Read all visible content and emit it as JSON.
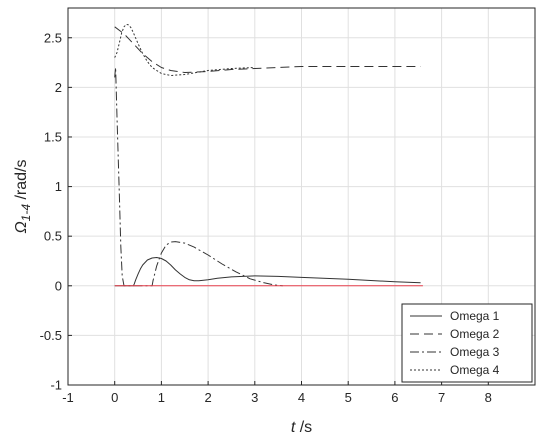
{
  "chart_data": {
    "type": "line",
    "xlabel": {
      "var": "t",
      "unit": " /s"
    },
    "ylabel": {
      "var": "Ω",
      "sub": "1-4",
      "unit": " /rad/s"
    },
    "xlim": [
      -1,
      9
    ],
    "ylim": [
      -1,
      2.8
    ],
    "xticks": [
      -1,
      0,
      1,
      2,
      3,
      4,
      5,
      6,
      7,
      8
    ],
    "yticks": [
      -1,
      -0.5,
      0,
      0.5,
      1,
      1.5,
      2,
      2.5
    ],
    "grid": true,
    "legend_position": "bottom-right",
    "series": [
      {
        "name": "Omega 1",
        "color": "#333333",
        "dash": "",
        "x": [
          0,
          0.4,
          0.42,
          0.45,
          0.5,
          0.55,
          0.6,
          0.7,
          0.8,
          0.9,
          1.0,
          1.1,
          1.2,
          1.3,
          1.4,
          1.5,
          1.6,
          1.7,
          1.8,
          2.0,
          2.2,
          2.5,
          3.0,
          3.5,
          4.0,
          5.0,
          6.0,
          6.55
        ],
        "y": [
          0,
          0,
          0.02,
          0.06,
          0.12,
          0.17,
          0.21,
          0.26,
          0.28,
          0.285,
          0.275,
          0.25,
          0.21,
          0.16,
          0.12,
          0.085,
          0.06,
          0.05,
          0.05,
          0.06,
          0.075,
          0.09,
          0.1,
          0.095,
          0.085,
          0.065,
          0.04,
          0.03
        ]
      },
      {
        "name": "Omega 2",
        "color": "#333333",
        "dash": "9,5",
        "x": [
          0,
          0.2,
          0.4,
          0.6,
          0.8,
          1.0,
          1.2,
          1.5,
          2.0,
          2.5,
          3.0,
          4.0,
          5.0,
          6.0,
          6.55
        ],
        "y": [
          2.61,
          2.54,
          2.44,
          2.34,
          2.26,
          2.2,
          2.17,
          2.15,
          2.16,
          2.18,
          2.19,
          2.21,
          2.21,
          2.21,
          2.21
        ]
      },
      {
        "name": "Omega 3",
        "color": "#333333",
        "dash": "9,3,2,3",
        "x": [
          0,
          0.02,
          0.05,
          0.1,
          0.13,
          0.16,
          0.2,
          0.8,
          0.82,
          0.9,
          1.0,
          1.1,
          1.2,
          1.3,
          1.5,
          1.7,
          2.0,
          2.3,
          2.6,
          2.9,
          3.2,
          3.4,
          3.6
        ],
        "y": [
          2.1,
          2.2,
          1.7,
          0.9,
          0.4,
          0.1,
          0,
          0,
          0.05,
          0.2,
          0.33,
          0.41,
          0.44,
          0.445,
          0.43,
          0.39,
          0.31,
          0.22,
          0.14,
          0.07,
          0.03,
          0.01,
          0
        ]
      },
      {
        "name": "Omega 4",
        "color": "#333333",
        "dash": "2,2",
        "x": [
          0,
          0.05,
          0.1,
          0.15,
          0.2,
          0.25,
          0.3,
          0.35,
          0.4,
          0.5,
          0.6,
          0.7,
          0.8,
          1.0,
          1.2,
          1.5,
          2.0,
          2.5,
          3.0
        ],
        "y": [
          2.3,
          2.35,
          2.45,
          2.55,
          2.61,
          2.635,
          2.63,
          2.6,
          2.55,
          2.44,
          2.34,
          2.26,
          2.2,
          2.14,
          2.12,
          2.13,
          2.17,
          2.19,
          2.2
        ]
      },
      {
        "color": "#e8414e",
        "dash": "",
        "x": [
          0,
          6.6
        ],
        "y": [
          0,
          0
        ]
      }
    ]
  }
}
